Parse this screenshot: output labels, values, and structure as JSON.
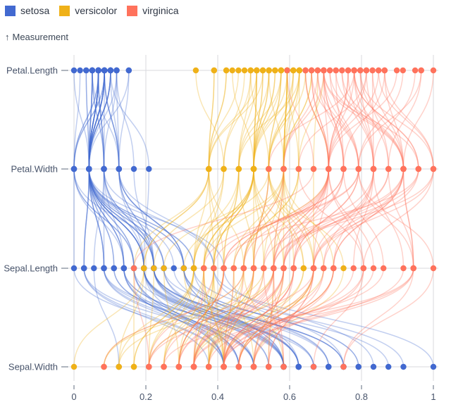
{
  "legend": {
    "items": [
      {
        "label": "setosa",
        "color": "#4269d0"
      },
      {
        "label": "versicolor",
        "color": "#efb118"
      },
      {
        "label": "virginica",
        "color": "#ff725c"
      }
    ]
  },
  "axis": {
    "y_title_arrow": "↑",
    "y_title": "Measurement",
    "row_labels": [
      "Petal.Length",
      "Petal.Width",
      "Sepal.Length",
      "Sepal.Width"
    ],
    "x_tick_labels": [
      "0",
      "0.2",
      "0.4",
      "0.6",
      "0.8",
      "1"
    ]
  },
  "chart_data": {
    "type": "line",
    "variant": "parallel-coordinates",
    "rows": [
      "Petal.Length",
      "Petal.Width",
      "Sepal.Length",
      "Sepal.Width"
    ],
    "x_domain": [
      0,
      1
    ],
    "x_ticks": [
      0,
      0.2,
      0.4,
      0.6,
      0.8,
      1
    ],
    "columns": [
      "Sepal.Length",
      "Sepal.Width",
      "Petal.Length",
      "Petal.Width"
    ],
    "normalization_ranges": {
      "Sepal.Length": [
        4.3,
        7.9
      ],
      "Sepal.Width": [
        2.0,
        4.4
      ],
      "Petal.Length": [
        1.0,
        6.9
      ],
      "Petal.Width": [
        0.1,
        2.5
      ]
    },
    "series": [
      {
        "name": "setosa",
        "color": "#4269d0",
        "values": [
          [
            5.1,
            3.5,
            1.4,
            0.2
          ],
          [
            4.9,
            3.0,
            1.4,
            0.2
          ],
          [
            4.7,
            3.2,
            1.3,
            0.2
          ],
          [
            4.6,
            3.1,
            1.5,
            0.2
          ],
          [
            5.0,
            3.6,
            1.4,
            0.2
          ],
          [
            5.4,
            3.9,
            1.7,
            0.4
          ],
          [
            4.6,
            3.4,
            1.4,
            0.3
          ],
          [
            5.0,
            3.4,
            1.5,
            0.2
          ],
          [
            4.4,
            2.9,
            1.4,
            0.2
          ],
          [
            4.9,
            3.1,
            1.5,
            0.1
          ],
          [
            5.4,
            3.7,
            1.5,
            0.2
          ],
          [
            4.8,
            3.4,
            1.6,
            0.2
          ],
          [
            4.8,
            3.0,
            1.4,
            0.1
          ],
          [
            4.3,
            3.0,
            1.1,
            0.1
          ],
          [
            5.8,
            4.0,
            1.2,
            0.2
          ],
          [
            5.7,
            4.4,
            1.5,
            0.4
          ],
          [
            5.4,
            3.9,
            1.3,
            0.4
          ],
          [
            5.1,
            3.5,
            1.4,
            0.3
          ],
          [
            5.7,
            3.8,
            1.7,
            0.3
          ],
          [
            5.1,
            3.8,
            1.5,
            0.3
          ],
          [
            5.4,
            3.4,
            1.7,
            0.2
          ],
          [
            5.1,
            3.7,
            1.5,
            0.4
          ],
          [
            4.6,
            3.6,
            1.0,
            0.2
          ],
          [
            5.1,
            3.3,
            1.7,
            0.5
          ],
          [
            4.8,
            3.4,
            1.9,
            0.2
          ],
          [
            5.0,
            3.0,
            1.6,
            0.2
          ],
          [
            5.0,
            3.4,
            1.6,
            0.4
          ],
          [
            5.2,
            3.5,
            1.5,
            0.2
          ],
          [
            5.2,
            3.4,
            1.4,
            0.2
          ],
          [
            4.7,
            3.2,
            1.6,
            0.2
          ],
          [
            4.8,
            3.1,
            1.6,
            0.2
          ],
          [
            5.4,
            3.4,
            1.5,
            0.4
          ],
          [
            5.2,
            4.1,
            1.5,
            0.1
          ],
          [
            5.5,
            4.2,
            1.4,
            0.2
          ],
          [
            4.9,
            3.1,
            1.5,
            0.2
          ],
          [
            5.0,
            3.2,
            1.2,
            0.2
          ],
          [
            5.5,
            3.5,
            1.3,
            0.2
          ],
          [
            4.9,
            3.6,
            1.4,
            0.1
          ],
          [
            4.4,
            3.0,
            1.3,
            0.2
          ],
          [
            5.1,
            3.4,
            1.5,
            0.2
          ],
          [
            5.0,
            3.5,
            1.3,
            0.3
          ],
          [
            4.5,
            2.3,
            1.3,
            0.3
          ],
          [
            4.4,
            3.2,
            1.3,
            0.2
          ],
          [
            5.0,
            3.5,
            1.6,
            0.6
          ],
          [
            5.1,
            3.8,
            1.9,
            0.4
          ],
          [
            4.8,
            3.0,
            1.4,
            0.3
          ],
          [
            5.1,
            3.8,
            1.6,
            0.2
          ],
          [
            4.6,
            3.2,
            1.4,
            0.2
          ],
          [
            5.3,
            3.7,
            1.5,
            0.2
          ],
          [
            5.0,
            3.3,
            1.4,
            0.2
          ]
        ]
      },
      {
        "name": "versicolor",
        "color": "#efb118",
        "values": [
          [
            7.0,
            3.2,
            4.7,
            1.4
          ],
          [
            6.4,
            3.2,
            4.5,
            1.5
          ],
          [
            6.9,
            3.1,
            4.9,
            1.5
          ],
          [
            5.5,
            2.3,
            4.0,
            1.3
          ],
          [
            6.5,
            2.8,
            4.6,
            1.5
          ],
          [
            5.7,
            2.8,
            4.5,
            1.3
          ],
          [
            6.3,
            3.3,
            4.7,
            1.6
          ],
          [
            4.9,
            2.4,
            3.3,
            1.0
          ],
          [
            6.6,
            2.9,
            4.6,
            1.3
          ],
          [
            5.2,
            2.7,
            3.9,
            1.4
          ],
          [
            5.0,
            2.0,
            3.5,
            1.0
          ],
          [
            5.9,
            3.0,
            4.2,
            1.5
          ],
          [
            6.0,
            2.2,
            4.0,
            1.0
          ],
          [
            6.1,
            2.9,
            4.7,
            1.4
          ],
          [
            5.6,
            2.9,
            3.6,
            1.3
          ],
          [
            6.7,
            3.1,
            4.4,
            1.4
          ],
          [
            5.6,
            3.0,
            4.5,
            1.5
          ],
          [
            5.8,
            2.7,
            4.1,
            1.0
          ],
          [
            6.2,
            2.2,
            4.5,
            1.5
          ],
          [
            5.6,
            2.5,
            3.9,
            1.1
          ],
          [
            5.9,
            3.2,
            4.8,
            1.8
          ],
          [
            6.1,
            2.8,
            4.0,
            1.3
          ],
          [
            6.3,
            2.5,
            4.9,
            1.5
          ],
          [
            6.1,
            2.8,
            4.7,
            1.2
          ],
          [
            6.4,
            2.9,
            4.3,
            1.3
          ],
          [
            6.6,
            3.0,
            4.4,
            1.4
          ],
          [
            6.8,
            2.8,
            4.8,
            1.4
          ],
          [
            6.7,
            3.0,
            5.0,
            1.7
          ],
          [
            6.0,
            2.9,
            4.5,
            1.5
          ],
          [
            5.7,
            2.6,
            3.5,
            1.0
          ],
          [
            5.5,
            2.4,
            3.8,
            1.1
          ],
          [
            5.5,
            2.4,
            3.7,
            1.0
          ],
          [
            5.8,
            2.7,
            3.9,
            1.2
          ],
          [
            6.0,
            2.7,
            5.1,
            1.6
          ],
          [
            5.4,
            3.0,
            4.5,
            1.5
          ],
          [
            6.0,
            3.4,
            4.5,
            1.6
          ],
          [
            6.7,
            3.1,
            4.7,
            1.5
          ],
          [
            6.3,
            2.3,
            4.4,
            1.3
          ],
          [
            5.6,
            3.0,
            4.1,
            1.3
          ],
          [
            5.5,
            2.5,
            4.0,
            1.3
          ],
          [
            5.5,
            2.6,
            4.4,
            1.2
          ],
          [
            6.1,
            3.0,
            4.6,
            1.4
          ],
          [
            5.8,
            2.6,
            4.0,
            1.2
          ],
          [
            5.0,
            2.3,
            3.3,
            1.0
          ],
          [
            5.6,
            2.7,
            4.2,
            1.3
          ],
          [
            5.7,
            3.0,
            4.2,
            1.2
          ],
          [
            5.7,
            2.9,
            4.2,
            1.3
          ],
          [
            6.2,
            2.9,
            4.3,
            1.3
          ],
          [
            5.1,
            2.5,
            3.0,
            1.1
          ],
          [
            5.7,
            2.8,
            4.1,
            1.3
          ]
        ]
      },
      {
        "name": "virginica",
        "color": "#ff725c",
        "values": [
          [
            6.3,
            3.3,
            6.0,
            2.5
          ],
          [
            5.8,
            2.7,
            5.1,
            1.9
          ],
          [
            7.1,
            3.0,
            5.9,
            2.1
          ],
          [
            6.3,
            2.9,
            5.6,
            1.8
          ],
          [
            6.5,
            3.0,
            5.8,
            2.2
          ],
          [
            7.6,
            3.0,
            6.6,
            2.1
          ],
          [
            4.9,
            2.5,
            4.5,
            1.7
          ],
          [
            7.3,
            2.9,
            6.3,
            1.8
          ],
          [
            6.7,
            2.5,
            5.8,
            1.8
          ],
          [
            7.2,
            3.6,
            6.1,
            2.5
          ],
          [
            6.5,
            3.2,
            5.1,
            2.0
          ],
          [
            6.4,
            2.7,
            5.3,
            1.9
          ],
          [
            6.8,
            3.0,
            5.5,
            2.1
          ],
          [
            5.7,
            2.5,
            5.0,
            2.0
          ],
          [
            5.8,
            2.8,
            5.1,
            2.4
          ],
          [
            6.4,
            3.2,
            5.3,
            2.3
          ],
          [
            6.5,
            3.0,
            5.5,
            1.8
          ],
          [
            7.7,
            3.8,
            6.7,
            2.2
          ],
          [
            7.7,
            2.6,
            6.9,
            2.3
          ],
          [
            6.0,
            2.2,
            5.0,
            1.5
          ],
          [
            6.9,
            3.2,
            5.7,
            2.3
          ],
          [
            5.6,
            2.8,
            4.9,
            2.0
          ],
          [
            7.7,
            2.8,
            6.7,
            2.0
          ],
          [
            6.3,
            2.7,
            4.9,
            1.8
          ],
          [
            6.7,
            3.3,
            5.7,
            2.1
          ],
          [
            7.2,
            3.2,
            6.0,
            1.8
          ],
          [
            6.2,
            2.8,
            4.8,
            1.8
          ],
          [
            6.1,
            3.0,
            4.9,
            1.8
          ],
          [
            6.4,
            2.8,
            5.6,
            2.1
          ],
          [
            7.2,
            3.0,
            5.8,
            1.6
          ],
          [
            7.4,
            2.8,
            6.1,
            1.9
          ],
          [
            7.9,
            3.8,
            6.4,
            2.0
          ],
          [
            6.4,
            2.8,
            5.6,
            2.2
          ],
          [
            6.3,
            2.8,
            5.1,
            1.5
          ],
          [
            6.1,
            2.6,
            5.6,
            1.4
          ],
          [
            7.7,
            3.0,
            6.1,
            2.3
          ],
          [
            6.3,
            3.4,
            5.6,
            2.4
          ],
          [
            6.4,
            3.1,
            5.5,
            1.8
          ],
          [
            6.0,
            3.0,
            4.8,
            1.8
          ],
          [
            6.9,
            3.1,
            5.4,
            2.1
          ],
          [
            6.7,
            3.1,
            5.6,
            2.4
          ],
          [
            6.9,
            3.1,
            5.1,
            2.3
          ],
          [
            5.8,
            2.7,
            5.1,
            1.9
          ],
          [
            6.8,
            3.2,
            5.9,
            2.3
          ],
          [
            6.7,
            3.3,
            5.7,
            2.5
          ],
          [
            6.7,
            3.0,
            5.2,
            2.3
          ],
          [
            6.3,
            2.5,
            5.0,
            1.9
          ],
          [
            6.5,
            3.0,
            5.2,
            2.0
          ],
          [
            6.2,
            3.4,
            5.4,
            2.3
          ],
          [
            5.9,
            3.0,
            5.1,
            1.8
          ]
        ]
      }
    ]
  }
}
